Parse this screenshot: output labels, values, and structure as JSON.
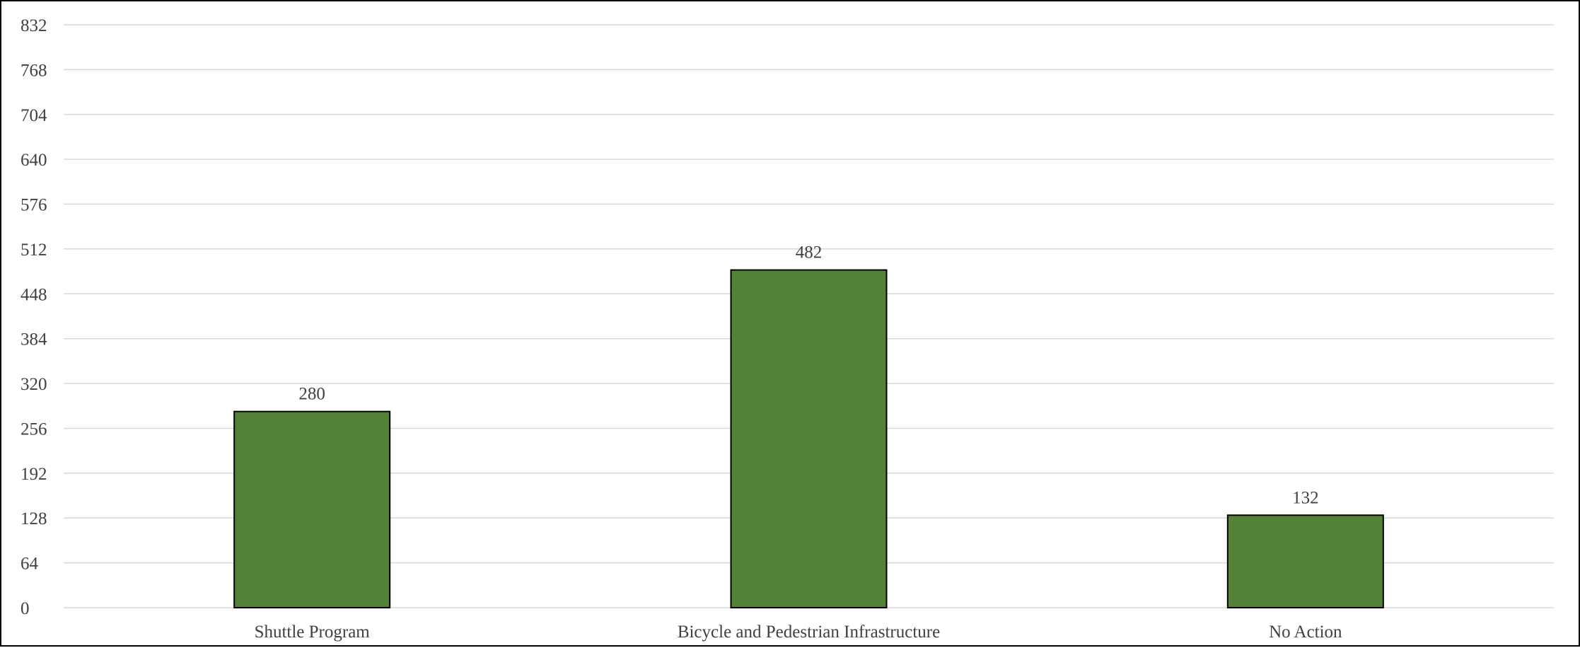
{
  "chart_data": {
    "type": "bar",
    "categories": [
      "Shuttle Program",
      "Bicycle and Pedestrian Infrastructure",
      "No Action"
    ],
    "values": [
      280,
      482,
      132
    ],
    "data_labels": [
      "280",
      "482",
      "132"
    ],
    "title": "",
    "xlabel": "",
    "ylabel": "",
    "ylim": [
      0,
      832
    ],
    "yticks": [
      0,
      64,
      128,
      192,
      256,
      320,
      384,
      448,
      512,
      576,
      640,
      704,
      768,
      832
    ],
    "ytick_labels": [
      "0",
      "64",
      "128",
      "192",
      "256",
      "320",
      "384",
      "448",
      "512",
      "576",
      "640",
      "704",
      "768",
      "832"
    ],
    "grid": true,
    "legend": "none",
    "colors": {
      "bar_fill": "#538135",
      "bar_stroke": "#000000",
      "gridline": "#d9d9d9",
      "text": "#404040"
    }
  }
}
